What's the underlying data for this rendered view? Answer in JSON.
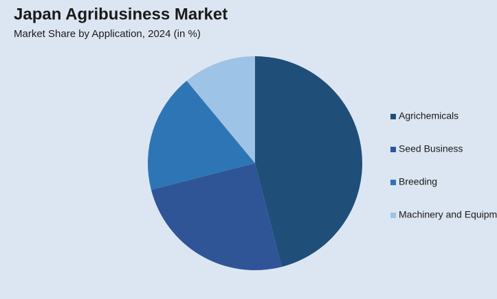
{
  "chart_data": {
    "type": "pie",
    "title": "Japan Agribusiness Market",
    "subtitle": "Market Share by Application, 2024 (in %)",
    "categories": [
      "Agrichemicals",
      "Seed Business",
      "Breeding",
      "Machinery and Equipm"
    ],
    "values": [
      46,
      25,
      18,
      11
    ],
    "colors": [
      "#1f4e79",
      "#2f5597",
      "#2e75b6",
      "#9dc3e6"
    ],
    "legend": "right"
  }
}
